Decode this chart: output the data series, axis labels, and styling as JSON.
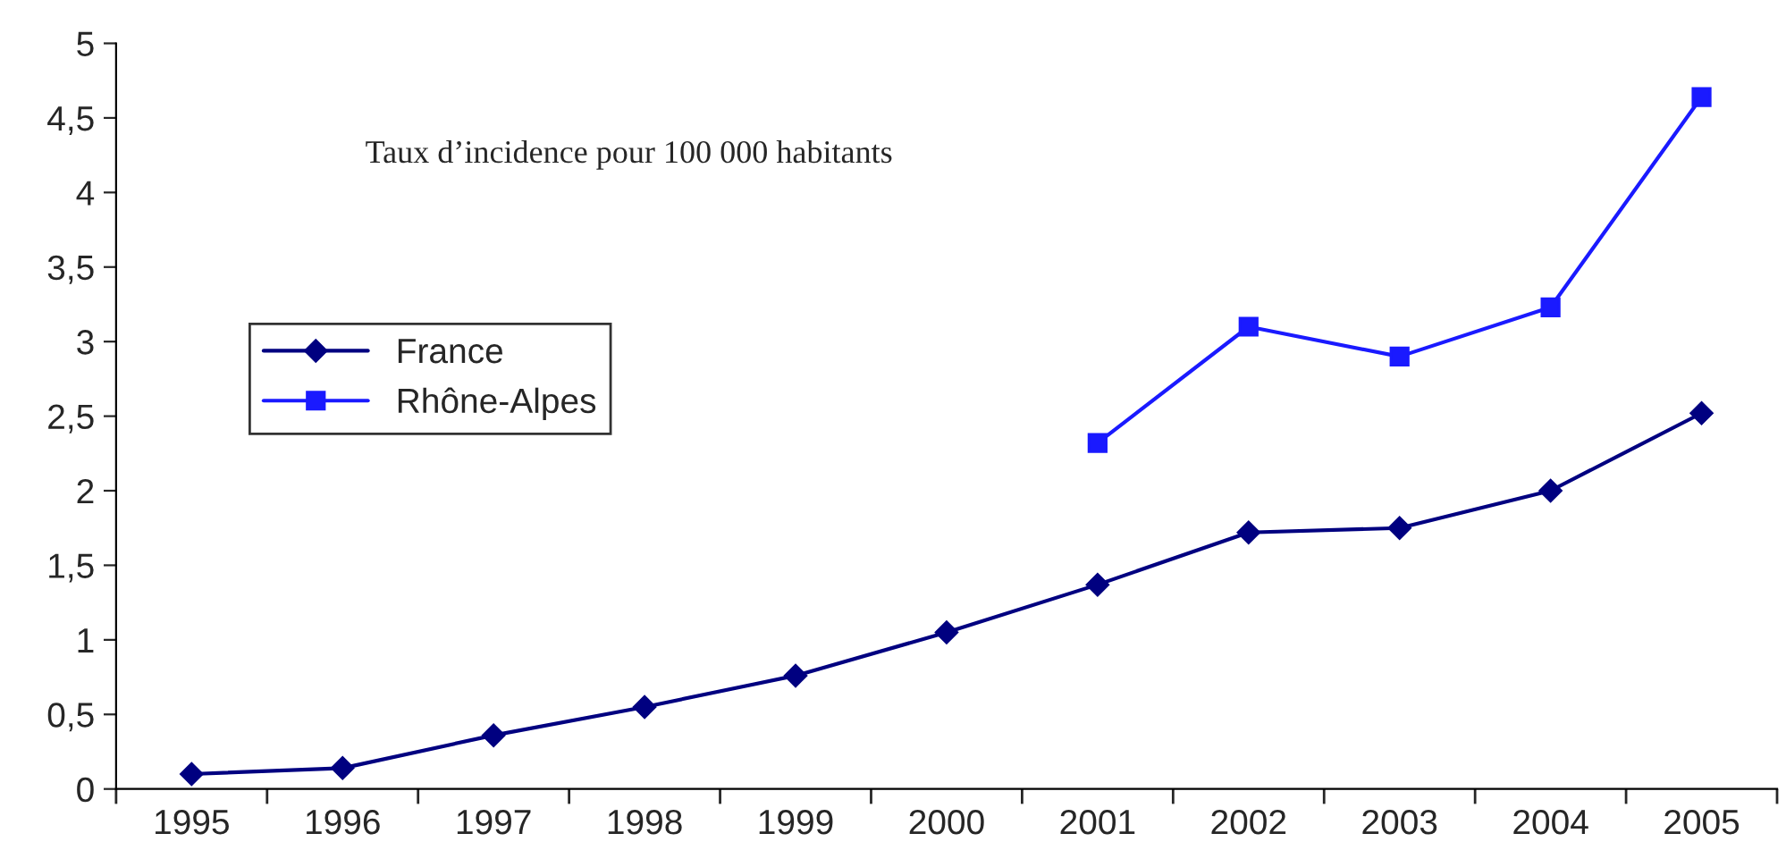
{
  "chart_data": {
    "type": "line",
    "categories": [
      "1995",
      "1996",
      "1997",
      "1998",
      "1999",
      "2000",
      "2001",
      "2002",
      "2003",
      "2004",
      "2005"
    ],
    "series": [
      {
        "name": "France",
        "color": "#000080",
        "marker": "diamond",
        "values": [
          0.1,
          0.14,
          0.36,
          0.55,
          0.76,
          1.05,
          1.37,
          1.72,
          1.75,
          2.0,
          2.52
        ]
      },
      {
        "name": "Rhône-Alpes",
        "color": "#1a1aff",
        "marker": "square",
        "values": [
          null,
          null,
          null,
          null,
          null,
          null,
          2.32,
          3.1,
          2.9,
          3.23,
          4.64
        ]
      }
    ],
    "ylim": [
      0,
      5
    ],
    "yticks": [
      0,
      {
        "value": 0.5,
        "label": "0,5"
      },
      1,
      {
        "value": 1.5,
        "label": "1,5"
      },
      2,
      {
        "value": 2.5,
        "label": "2,5"
      },
      3,
      {
        "value": 3.5,
        "label": "3,5"
      },
      4,
      {
        "value": 4.5,
        "label": "4,5"
      },
      5
    ],
    "annotations": [
      "Taux d’incidence pour 100 000 habitants"
    ],
    "legend": "left",
    "grid": false,
    "line_style": "solid"
  }
}
